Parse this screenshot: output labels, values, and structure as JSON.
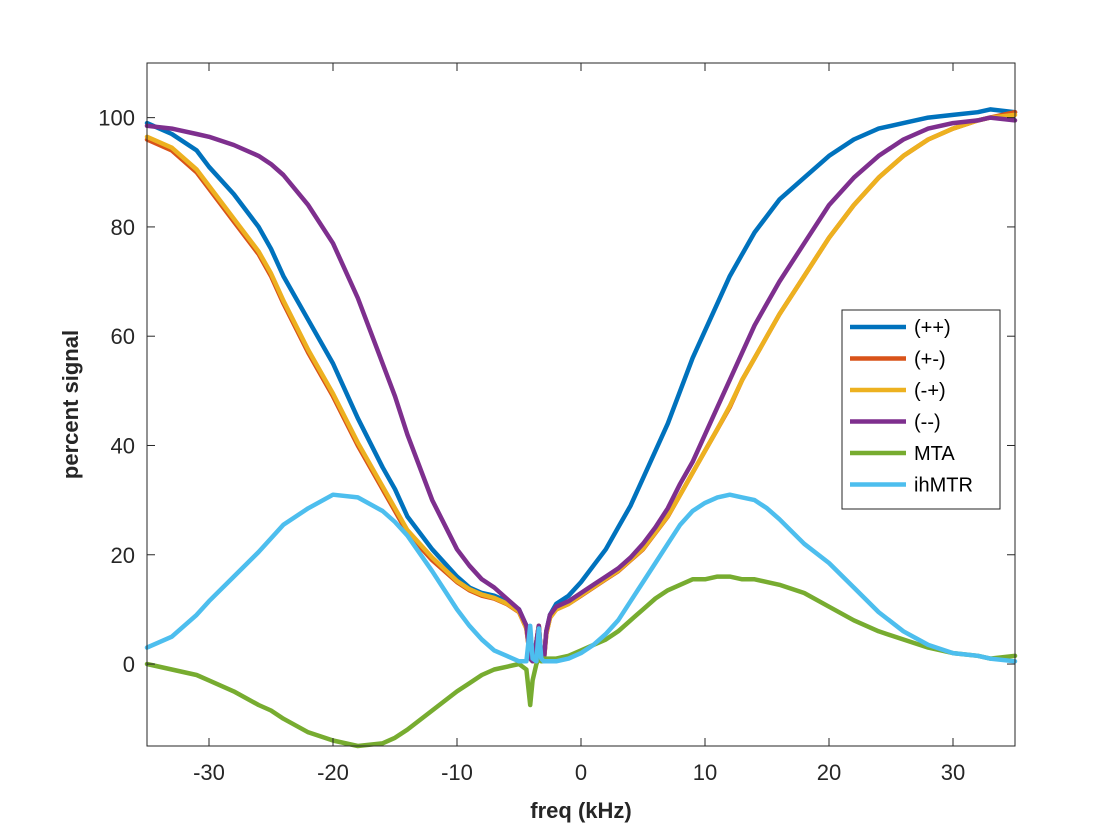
{
  "chart_data": {
    "type": "line",
    "title": "",
    "xlabel": "freq (kHz)",
    "ylabel": "percent signal",
    "xlim": [
      -35,
      35
    ],
    "ylim": [
      -15,
      110
    ],
    "xticks": [
      -30,
      -20,
      -10,
      0,
      10,
      20,
      30
    ],
    "yticks": [
      0,
      20,
      40,
      60,
      80,
      100
    ],
    "xtick_labels": [
      "-30",
      "-20",
      "-10",
      "0",
      "10",
      "20",
      "30"
    ],
    "ytick_labels": [
      "0",
      "20",
      "40",
      "60",
      "80",
      "100"
    ],
    "grid": false,
    "legend_position": "east",
    "series": [
      {
        "name": "(++)",
        "color": "#0072BD",
        "x": [
          -35,
          -33,
          -31,
          -30,
          -28,
          -26,
          -25,
          -24,
          -22,
          -20,
          -18,
          -16,
          -15,
          -14,
          -12,
          -10,
          -9,
          -8,
          -7,
          -6,
          -5,
          -4.4,
          -4.1,
          -3.9,
          -3.6,
          -3.4,
          -3.2,
          -3,
          -2.8,
          -2.5,
          -2,
          -1,
          0,
          1,
          2,
          3,
          4,
          5,
          6,
          7,
          8,
          9,
          10,
          11,
          12,
          13,
          14,
          15,
          16,
          18,
          20,
          22,
          24,
          26,
          28,
          30,
          32,
          33,
          35
        ],
        "y": [
          99,
          97,
          94,
          91,
          86,
          80,
          76,
          71,
          63,
          55,
          45,
          36,
          32,
          27,
          21,
          16,
          14,
          13,
          12.5,
          11.5,
          10,
          7,
          1,
          0.5,
          4,
          7,
          1,
          0.5,
          6,
          9,
          11,
          12.5,
          15,
          18,
          21,
          25,
          29,
          34,
          39,
          44,
          50,
          56,
          61,
          66,
          71,
          75,
          79,
          82,
          85,
          89,
          93,
          96,
          98,
          99,
          100,
          100.5,
          101,
          101.5,
          101
        ]
      },
      {
        "name": "(+-)",
        "color": "#D95319",
        "x": [
          -35,
          -33,
          -31,
          -30,
          -28,
          -26,
          -25,
          -24,
          -22,
          -20,
          -18,
          -16,
          -15,
          -14,
          -12,
          -10,
          -9,
          -8,
          -7,
          -6,
          -5,
          -4.4,
          -4.1,
          -3.9,
          -3.6,
          -3.4,
          -3.2,
          -3,
          -2.8,
          -2.5,
          -2,
          -1,
          0,
          1,
          2,
          3,
          4,
          5,
          6,
          7,
          8,
          9,
          10,
          11,
          12,
          13,
          14,
          15,
          16,
          18,
          20,
          22,
          24,
          26,
          28,
          30,
          32,
          33,
          35
        ],
        "y": [
          96,
          94,
          90,
          87,
          81,
          75,
          71,
          66,
          57,
          49,
          40,
          32,
          28,
          24,
          19,
          15,
          13.5,
          12.5,
          12,
          11,
          9.5,
          6.5,
          1,
          0.5,
          4,
          7,
          1,
          0.5,
          5.5,
          8.5,
          10,
          11,
          12.5,
          14,
          15.5,
          17,
          19,
          21,
          24,
          27,
          31,
          35,
          39,
          43,
          47,
          52,
          56,
          60,
          64,
          71,
          78,
          84,
          89,
          93,
          96,
          98,
          99.5,
          100,
          101
        ]
      },
      {
        "name": "(-+)",
        "color": "#EDB120",
        "x": [
          -35,
          -33,
          -31,
          -30,
          -28,
          -26,
          -25,
          -24,
          -22,
          -20,
          -18,
          -16,
          -15,
          -14,
          -12,
          -10,
          -9,
          -8,
          -7,
          -6,
          -5,
          -4.4,
          -4.1,
          -3.9,
          -3.6,
          -3.4,
          -3.2,
          -3,
          -2.8,
          -2.5,
          -2,
          -1,
          0,
          1,
          2,
          3,
          4,
          5,
          6,
          7,
          8,
          9,
          10,
          11,
          12,
          13,
          14,
          15,
          16,
          18,
          20,
          22,
          24,
          26,
          28,
          30,
          32,
          33,
          35
        ],
        "y": [
          96.5,
          94.5,
          90.5,
          87.5,
          81.5,
          75.5,
          71.5,
          66.5,
          57.5,
          49.5,
          40.5,
          32.5,
          28.5,
          24.5,
          19.5,
          15.2,
          13.7,
          12.7,
          12.1,
          11.1,
          9.6,
          6.5,
          1,
          0.5,
          4,
          7,
          1,
          0.5,
          5.5,
          8.5,
          10,
          11,
          12.6,
          14.1,
          15.6,
          17.1,
          19.1,
          21.1,
          24.1,
          27.1,
          31,
          35,
          39,
          43,
          47.2,
          52,
          56,
          60,
          64,
          71,
          78,
          84,
          89,
          93,
          96,
          98,
          99.5,
          100,
          100.5
        ]
      },
      {
        "name": "(--)",
        "color": "#7E2F8E",
        "x": [
          -35,
          -33,
          -31,
          -30,
          -28,
          -26,
          -25,
          -24,
          -22,
          -20,
          -18,
          -16,
          -15,
          -14,
          -12,
          -10,
          -9,
          -8,
          -7,
          -6,
          -5,
          -4.4,
          -4.1,
          -3.9,
          -3.6,
          -3.4,
          -3.2,
          -3,
          -2.8,
          -2.5,
          -2,
          -1,
          0,
          1,
          2,
          3,
          4,
          5,
          6,
          7,
          8,
          9,
          10,
          11,
          12,
          13,
          14,
          15,
          16,
          18,
          20,
          22,
          24,
          26,
          28,
          30,
          32,
          33,
          35
        ],
        "y": [
          98.5,
          98,
          97,
          96.5,
          95,
          93,
          91.5,
          89.5,
          84,
          77,
          67,
          55,
          49,
          42,
          30,
          21,
          18,
          15.5,
          14,
          12,
          10,
          7,
          1,
          0.5,
          4,
          7,
          1,
          0.5,
          6,
          9,
          10.5,
          11.5,
          13,
          14.5,
          16,
          17.5,
          19.5,
          22,
          25,
          28.5,
          33,
          37,
          42,
          47,
          52,
          57,
          62,
          66,
          70,
          77,
          84,
          89,
          93,
          96,
          98,
          99,
          99.5,
          100,
          99.5
        ]
      },
      {
        "name": "MTA",
        "color": "#77AC30",
        "x": [
          -35,
          -33,
          -31,
          -30,
          -28,
          -26,
          -25,
          -24,
          -22,
          -20,
          -18,
          -16,
          -15,
          -14,
          -12,
          -10,
          -9,
          -8,
          -7,
          -6,
          -5,
          -4.4,
          -4.1,
          -3.9,
          -3.6,
          -3.4,
          -3.2,
          -3,
          -2.8,
          -2.5,
          -2,
          -1,
          0,
          1,
          2,
          3,
          4,
          5,
          6,
          7,
          8,
          9,
          10,
          11,
          12,
          13,
          14,
          15,
          16,
          18,
          20,
          22,
          24,
          26,
          28,
          30,
          32,
          33,
          35
        ],
        "y": [
          0,
          -1,
          -2,
          -3,
          -5,
          -7.5,
          -8.5,
          -10,
          -12.5,
          -14,
          -15,
          -14.5,
          -13.5,
          -12,
          -8.5,
          -5,
          -3.5,
          -2,
          -1,
          -0.5,
          0,
          -1,
          -7.5,
          -3,
          0,
          1,
          0.5,
          1,
          1,
          1,
          1,
          1.5,
          2.5,
          3.5,
          4.5,
          6,
          8,
          10,
          12,
          13.5,
          14.5,
          15.5,
          15.5,
          16,
          16,
          15.5,
          15.5,
          15,
          14.5,
          13,
          10.5,
          8,
          6,
          4.5,
          3,
          2,
          1.5,
          1,
          1.5
        ]
      },
      {
        "name": "ihMTR",
        "color": "#4DBEEE",
        "x": [
          -35,
          -33,
          -31,
          -30,
          -28,
          -26,
          -25,
          -24,
          -22,
          -20,
          -18,
          -16,
          -15,
          -14,
          -12,
          -10,
          -9,
          -8,
          -7,
          -6,
          -5,
          -4.4,
          -4.1,
          -3.9,
          -3.6,
          -3.4,
          -3.2,
          -3,
          -2.8,
          -2.5,
          -2,
          -1,
          0,
          1,
          2,
          3,
          4,
          5,
          6,
          7,
          8,
          9,
          10,
          11,
          12,
          13,
          14,
          15,
          16,
          18,
          20,
          22,
          24,
          26,
          28,
          30,
          32,
          33,
          35
        ],
        "y": [
          3,
          5,
          9,
          11.5,
          16,
          20.5,
          23,
          25.5,
          28.5,
          31,
          30.5,
          28,
          26,
          23.5,
          17,
          10,
          7,
          4.5,
          2.5,
          1.5,
          0.5,
          0.5,
          7,
          1,
          0.5,
          6.5,
          1,
          0.5,
          0.5,
          0.5,
          0.5,
          1,
          2,
          3.5,
          5.5,
          8,
          11.5,
          15,
          18.5,
          22,
          25.5,
          28,
          29.5,
          30.5,
          31,
          30.5,
          30,
          28.5,
          26.5,
          22,
          18.5,
          14,
          9.5,
          6,
          3.5,
          2,
          1.5,
          1,
          0.5
        ]
      }
    ]
  }
}
